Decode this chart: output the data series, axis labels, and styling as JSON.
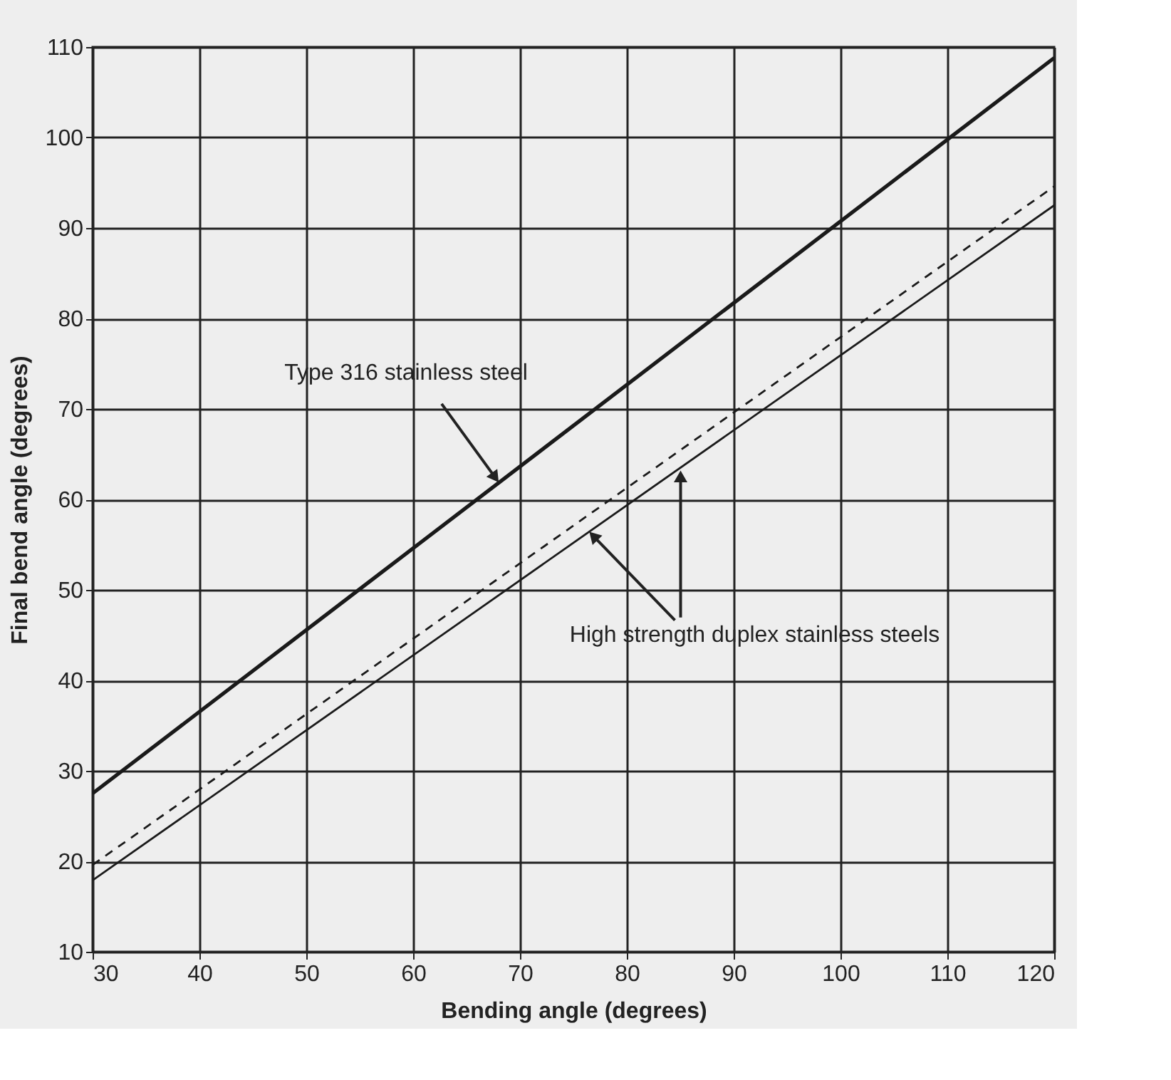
{
  "chart_data": {
    "type": "line",
    "xlabel": "Bending angle (degrees)",
    "ylabel": "Final bend angle (degrees)",
    "x": [
      30,
      120
    ],
    "series": [
      {
        "color": "#1a1a1a",
        "values": [
          27.5,
          108.8
        ],
        "line_style": "solid"
      },
      {
        "color": "#1a1a1a",
        "values": [
          19.6,
          94.6
        ],
        "line_style": "dashed"
      },
      {
        "color": "#1a1a1a",
        "values": [
          17.9,
          92.5
        ],
        "line_style": "solid"
      }
    ],
    "xlim": [
      30,
      120
    ],
    "xticks": [
      30,
      40,
      50,
      60,
      70,
      80,
      90,
      100,
      110,
      120
    ],
    "ylim": [
      10,
      110
    ],
    "yticks": [
      10,
      20,
      30,
      40,
      50,
      60,
      70,
      80,
      90,
      100,
      110
    ],
    "grid": true,
    "marker": "none",
    "annotations": [
      {
        "text": "Type 316 stainless steel",
        "x": 68,
        "y": 61.9
      },
      {
        "text": "High strength duplex stainless steels",
        "x": 76.5,
        "y": 56.4
      }
    ]
  }
}
